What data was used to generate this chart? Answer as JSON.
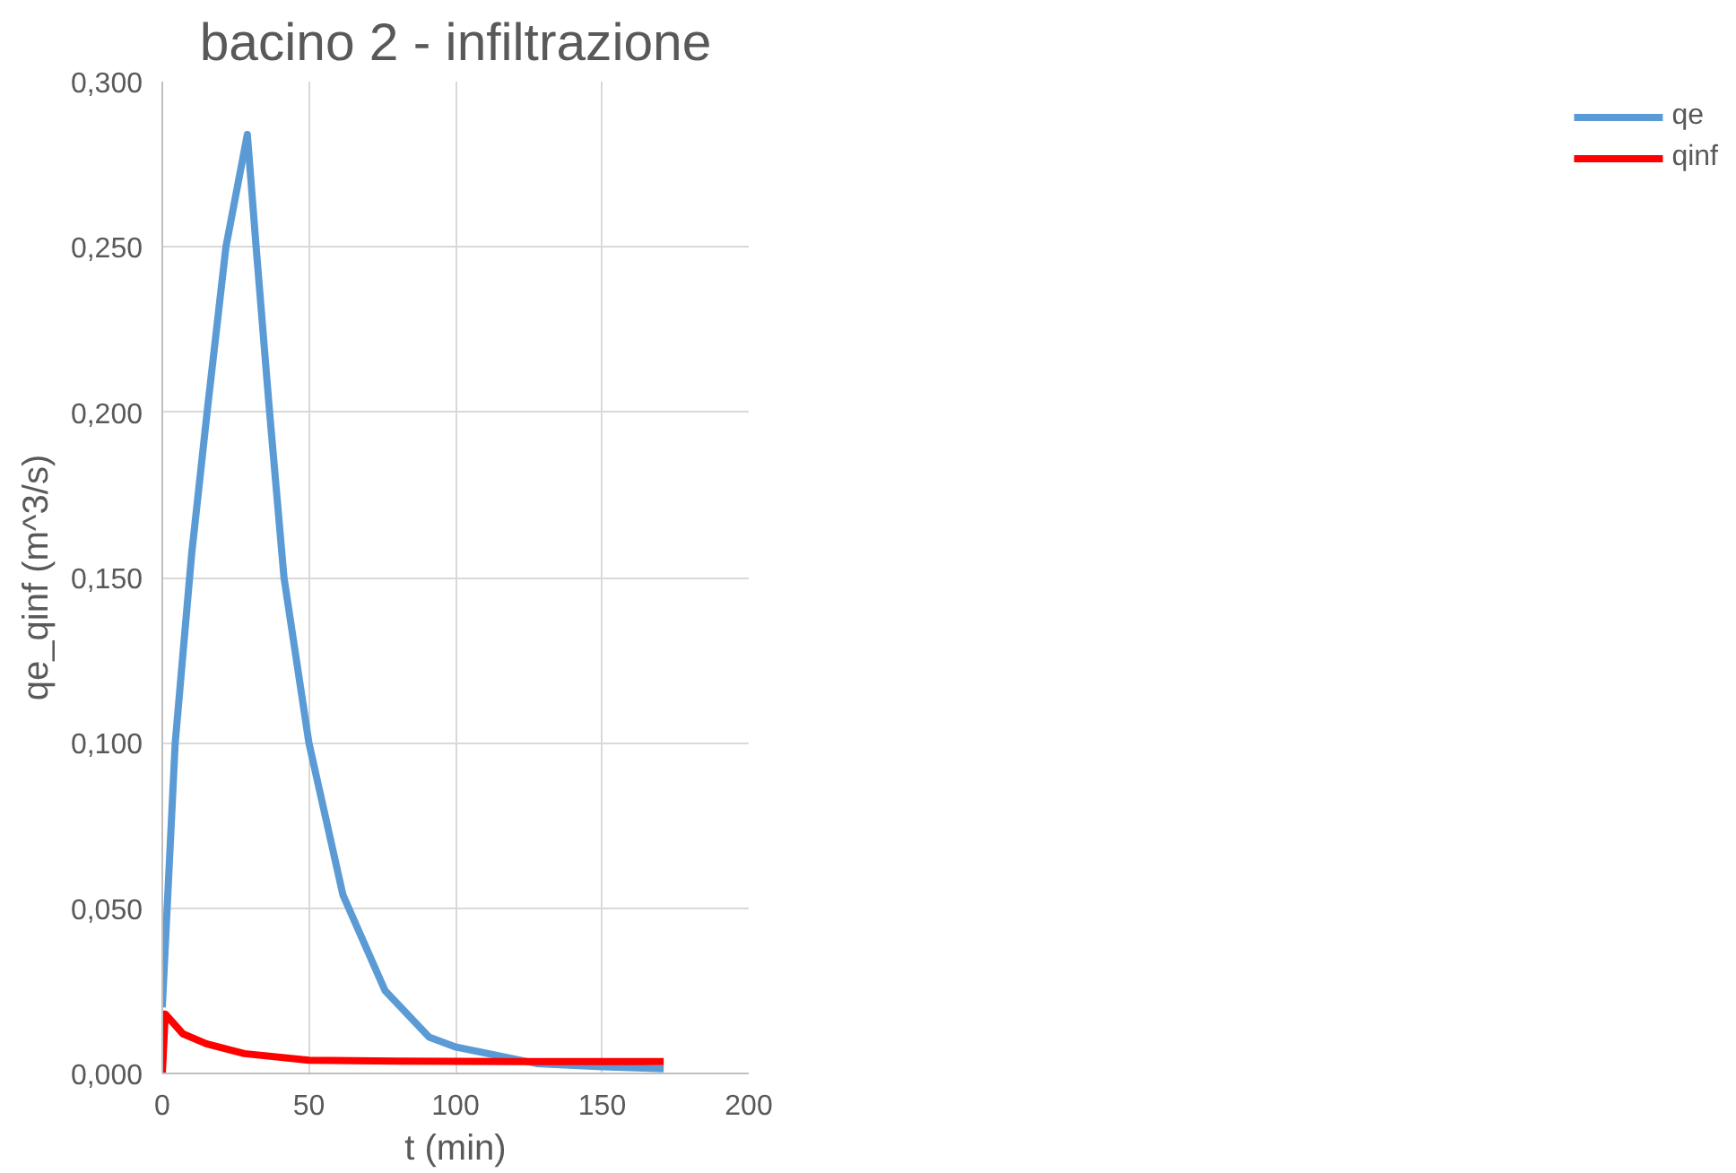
{
  "chart_data": {
    "type": "line",
    "title": "bacino 2 - infiltrazione",
    "xlabel": "t (min)",
    "ylabel": "qe_qinf (m^3/s)",
    "xlim": [
      0,
      200
    ],
    "xticks": [
      0,
      50,
      100,
      150,
      200
    ],
    "ylim": [
      0,
      0.3
    ],
    "yticks": [
      {
        "value": 0,
        "label": "0,000"
      },
      {
        "value": 0.05,
        "label": "0,050"
      },
      {
        "value": 0.1,
        "label": "0,100"
      },
      {
        "value": 0.15,
        "label": "0,150"
      },
      {
        "value": 0.2,
        "label": "0,200"
      },
      {
        "value": 0.25,
        "label": "0,250"
      },
      {
        "value": 0.3,
        "label": "0,300"
      }
    ],
    "grid": true,
    "legend": "right",
    "marker": "none",
    "line_style": "solid",
    "series": [
      {
        "name": "qe",
        "color": "#5b9bd5",
        "x": [
          0,
          4.4,
          10,
          15.4,
          21.7,
          29,
          32,
          36.5,
          41.5,
          50,
          61.6,
          76,
          91,
          100,
          127.6,
          150,
          171
        ],
        "values": [
          0.02,
          0.1,
          0.157,
          0.201,
          0.25,
          0.284,
          0.25,
          0.201,
          0.15,
          0.1,
          0.054,
          0.025,
          0.011,
          0.008,
          0.003,
          0.002,
          0.0014
        ]
      },
      {
        "name": "qinf",
        "color": "#ff0000",
        "x": [
          0,
          1,
          7,
          15,
          28,
          50,
          80,
          120,
          171
        ],
        "values": [
          0,
          0.018,
          0.012,
          0.009,
          0.006,
          0.004,
          0.0037,
          0.0036,
          0.0036
        ]
      }
    ]
  }
}
